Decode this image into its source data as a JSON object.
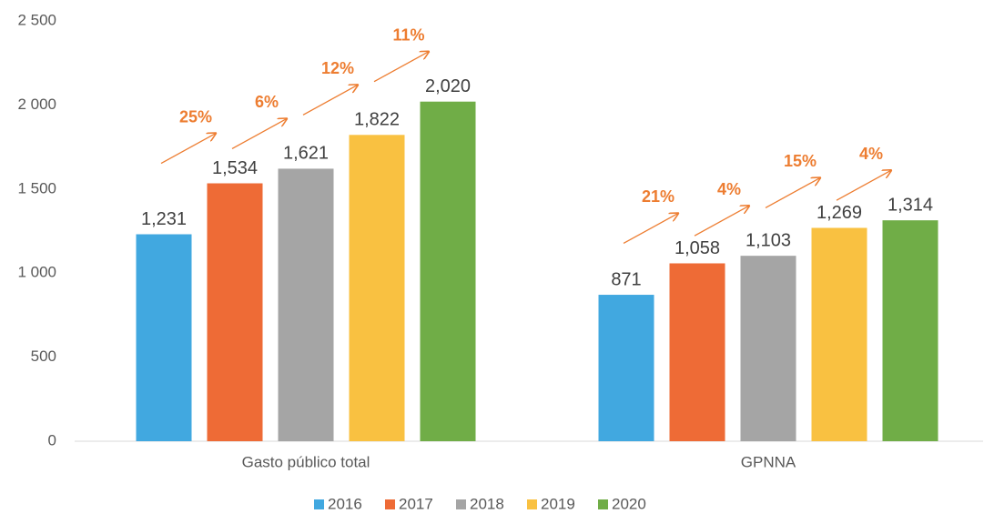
{
  "chart_data": {
    "type": "bar",
    "categories": [
      "Gasto público total",
      "GPNNA"
    ],
    "series": [
      {
        "name": "2016",
        "color": "#41a8e0",
        "values": [
          1231,
          871
        ],
        "value_labels": [
          "1,231",
          "871"
        ]
      },
      {
        "name": "2017",
        "color": "#ee6b36",
        "values": [
          1534,
          1058
        ],
        "value_labels": [
          "1,534",
          "1,058"
        ]
      },
      {
        "name": "2018",
        "color": "#a5a5a5",
        "values": [
          1621,
          1103
        ],
        "value_labels": [
          "1,621",
          "1,103"
        ]
      },
      {
        "name": "2019",
        "color": "#f9c141",
        "values": [
          1822,
          1269
        ],
        "value_labels": [
          "1,822",
          "1,269"
        ]
      },
      {
        "name": "2020",
        "color": "#70ad47",
        "values": [
          2020,
          1314
        ],
        "value_labels": [
          "2,020",
          "1,314"
        ]
      }
    ],
    "annotations": [
      [
        "25%",
        "6%",
        "12%",
        "11%"
      ],
      [
        "21%",
        "4%",
        "15%",
        "4%"
      ]
    ],
    "annotation_color": "#ed7d31",
    "ylim": [
      0,
      2500
    ],
    "yticks": [
      0,
      500,
      {
        "value": 1000,
        "label": "1 000"
      },
      {
        "value": 1500,
        "label": "1 500"
      },
      {
        "value": 2000,
        "label": "2 000"
      },
      {
        "value": 2500,
        "label": "2 500"
      }
    ],
    "legend": "bottom"
  }
}
